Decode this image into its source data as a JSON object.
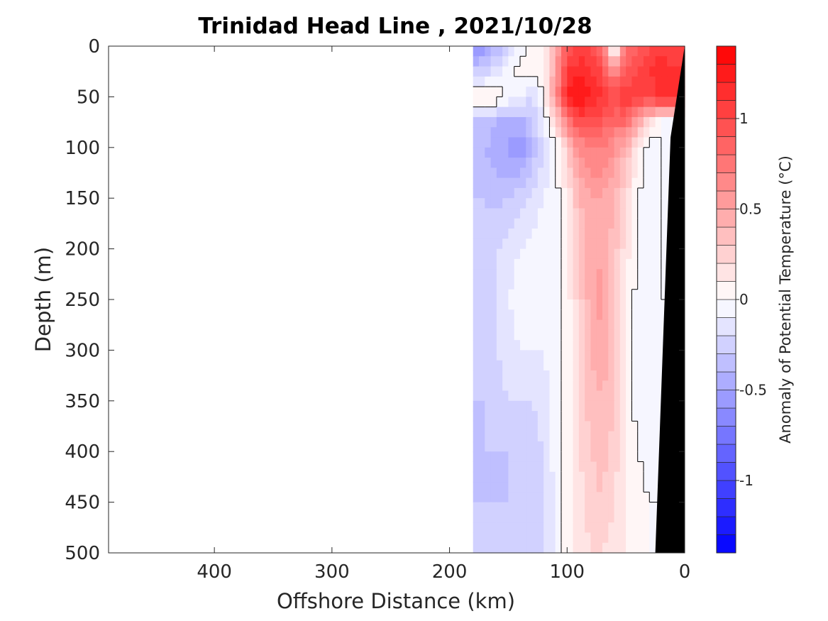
{
  "chart_data": {
    "type": "heatmap",
    "title": "Trinidad Head Line , 2021/10/28",
    "xlabel": "Offshore Distance (km)",
    "ylabel": "Depth (m)",
    "x_reversed": true,
    "y_reversed": true,
    "xlim": [
      0,
      490
    ],
    "ylim": [
      0,
      500
    ],
    "x_ticks": [
      400,
      300,
      200,
      100,
      0
    ],
    "y_ticks": [
      0,
      50,
      100,
      150,
      200,
      250,
      300,
      350,
      400,
      450,
      500
    ],
    "colorbar": {
      "label": "Anomaly of Potential Temperature (°C)",
      "range": [
        -1.4,
        1.4
      ],
      "step": 0.1,
      "ticks": [
        1,
        0.5,
        0,
        -0.5,
        -1
      ],
      "tick_labels": [
        "1",
        "0.5",
        "0",
        "-0.5",
        "-1"
      ],
      "low_color": "#0000ff",
      "mid_color": "#ffffff",
      "high_color": "#ff0000"
    },
    "data_coverage_km": [
      0,
      180
    ],
    "bathymetry": {
      "color": "#000000",
      "depth_m": [
        0,
        90,
        500
      ],
      "distance_km": [
        0,
        12,
        25
      ]
    },
    "zero_contour_color": "#000000",
    "x": [
      180,
      170,
      160,
      150,
      140,
      130,
      120,
      110,
      100,
      90,
      80,
      70,
      60,
      50,
      40,
      30,
      20,
      10
    ],
    "y": [
      0,
      25,
      50,
      75,
      100,
      150,
      200,
      250,
      300,
      350,
      400,
      450,
      500
    ],
    "z": [
      [
        -0.6,
        -0.55,
        -0.4,
        -0.2,
        -0.05,
        0.05,
        0.1,
        0.4,
        0.9,
        1.0,
        1.0,
        0.8,
        -0.2,
        0.8,
        0.9,
        1.0,
        1.0,
        1.0
      ],
      [
        -0.3,
        -0.25,
        -0.15,
        -0.05,
        0.05,
        0.05,
        0.1,
        0.5,
        1.1,
        1.2,
        1.1,
        1.0,
        0.6,
        0.9,
        1.0,
        1.1,
        1.2,
        1.1
      ],
      [
        0.1,
        0.1,
        0.1,
        -0.05,
        -0.1,
        -0.2,
        0.0,
        0.6,
        1.2,
        1.3,
        1.2,
        1.1,
        1.0,
        1.1,
        1.1,
        1.0,
        1.2,
        1.2
      ],
      [
        -0.3,
        -0.3,
        -0.4,
        -0.4,
        -0.45,
        -0.3,
        -0.1,
        0.2,
        0.7,
        1.0,
        1.0,
        0.9,
        0.8,
        0.8,
        0.5,
        0.2,
        0.0,
        0.0
      ],
      [
        -0.4,
        -0.4,
        -0.45,
        -0.5,
        -0.6,
        -0.4,
        -0.2,
        -0.05,
        0.3,
        0.6,
        0.7,
        0.7,
        0.6,
        0.4,
        0.1,
        -0.05,
        0.0,
        0.0
      ],
      [
        -0.3,
        -0.3,
        -0.35,
        -0.3,
        -0.25,
        -0.2,
        -0.1,
        -0.05,
        0.1,
        0.4,
        0.5,
        0.5,
        0.4,
        0.2,
        0.0,
        -0.05,
        0.0,
        0.0
      ],
      [
        -0.25,
        -0.25,
        -0.2,
        -0.15,
        -0.1,
        -0.05,
        0.02,
        -0.05,
        0.05,
        0.3,
        0.45,
        0.5,
        0.35,
        0.15,
        0.0,
        -0.05,
        0.0,
        0.0
      ],
      [
        -0.25,
        -0.2,
        -0.2,
        -0.1,
        -0.05,
        0.02,
        -0.1,
        -0.1,
        0.05,
        0.25,
        0.45,
        0.55,
        0.35,
        0.1,
        -0.05,
        -0.1,
        0.0,
        0.0
      ],
      [
        -0.3,
        -0.25,
        -0.2,
        -0.15,
        -0.1,
        -0.1,
        -0.1,
        -0.05,
        0.05,
        0.2,
        0.4,
        0.5,
        0.3,
        0.1,
        -0.05,
        -0.1,
        -0.05,
        0.0
      ],
      [
        -0.3,
        -0.3,
        -0.25,
        -0.2,
        -0.2,
        -0.2,
        -0.15,
        -0.05,
        0.05,
        0.2,
        0.35,
        0.4,
        0.3,
        0.1,
        -0.05,
        -0.05,
        -0.05,
        0.0
      ],
      [
        -0.3,
        -0.3,
        -0.3,
        -0.3,
        -0.25,
        -0.25,
        -0.2,
        -0.05,
        0.05,
        0.2,
        0.3,
        0.35,
        0.25,
        0.1,
        0.0,
        -0.05,
        0.0,
        0.0
      ],
      [
        -0.3,
        -0.3,
        -0.3,
        -0.3,
        -0.3,
        -0.25,
        -0.2,
        -0.1,
        0.05,
        0.15,
        0.25,
        0.3,
        0.2,
        0.1,
        0.05,
        0.0,
        0.0,
        0.0
      ],
      [
        -0.25,
        -0.25,
        -0.25,
        -0.25,
        -0.25,
        -0.25,
        -0.2,
        -0.1,
        0.05,
        0.15,
        0.2,
        0.2,
        0.15,
        0.1,
        0.05,
        0.0,
        0.0,
        0.0
      ]
    ]
  }
}
